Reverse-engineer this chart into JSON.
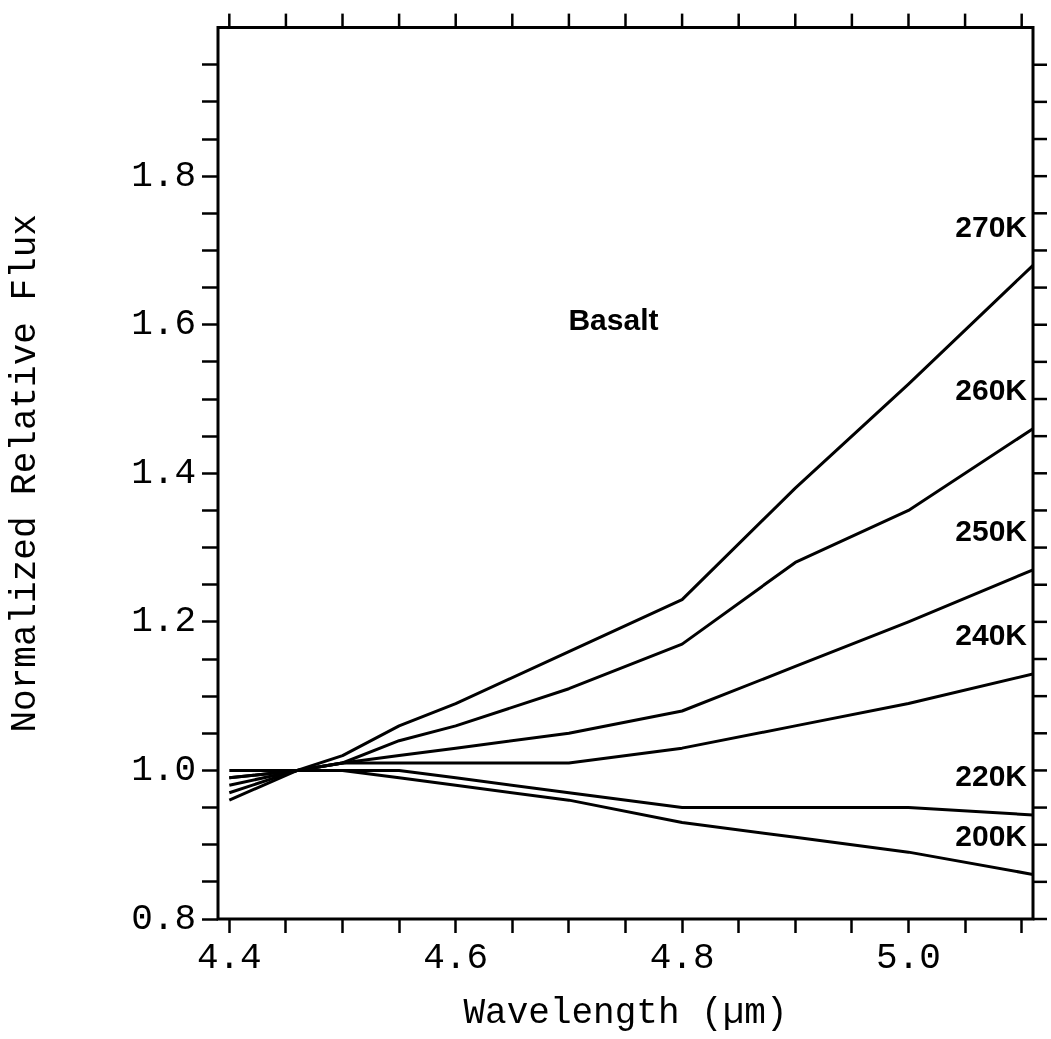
{
  "chart_data": {
    "type": "line",
    "xlabel": "Wavelength (µm)",
    "ylabel": "Normalized Relative Flux",
    "annotations": [
      "Basalt"
    ],
    "x": [
      4.4,
      4.46,
      4.5,
      4.55,
      4.6,
      4.7,
      4.8,
      4.9,
      5.0,
      5.11
    ],
    "series": [
      {
        "name": "270K",
        "color": "#000000",
        "values": [
          0.96,
          1.0,
          1.02,
          1.06,
          1.09,
          1.16,
          1.23,
          1.38,
          1.52,
          1.68
        ]
      },
      {
        "name": "260K",
        "color": "#000000",
        "values": [
          0.97,
          1.0,
          1.01,
          1.04,
          1.06,
          1.11,
          1.17,
          1.28,
          1.35,
          1.46
        ]
      },
      {
        "name": "250K",
        "color": "#000000",
        "values": [
          0.98,
          1.0,
          1.01,
          1.02,
          1.03,
          1.05,
          1.08,
          1.14,
          1.2,
          1.27
        ]
      },
      {
        "name": "240K",
        "color": "#000000",
        "values": [
          0.99,
          1.0,
          1.01,
          1.01,
          1.01,
          1.01,
          1.03,
          1.06,
          1.09,
          1.13
        ]
      },
      {
        "name": "220K",
        "color": "#000000",
        "values": [
          0.99,
          1.0,
          1.0,
          1.0,
          0.99,
          0.97,
          0.95,
          0.95,
          0.95,
          0.94
        ]
      },
      {
        "name": "200K",
        "color": "#000000",
        "values": [
          1.0,
          1.0,
          1.0,
          0.99,
          0.98,
          0.96,
          0.93,
          0.91,
          0.89,
          0.86
        ]
      }
    ],
    "xlim": [
      4.39,
      5.11
    ],
    "ylim": [
      0.8,
      2.0
    ],
    "xticks": [
      4.4,
      {
        "value": 4.45,
        "label": null
      },
      {
        "value": 4.5,
        "label": null
      },
      {
        "value": 4.55,
        "label": null
      },
      "4.6",
      {
        "value": 4.65,
        "label": null
      },
      {
        "value": 4.7,
        "label": null
      },
      {
        "value": 4.75,
        "label": null
      },
      "4.8",
      {
        "value": 4.85,
        "label": null
      },
      {
        "value": 4.9,
        "label": null
      },
      {
        "value": 4.95,
        "label": null
      },
      {
        "value": 5.0,
        "label": "5.0"
      },
      {
        "value": 5.05,
        "label": null
      },
      {
        "value": 5.1,
        "label": null
      }
    ],
    "yticks": [
      {
        "value": 0.8,
        "label": "0.8"
      },
      {
        "value": 0.85,
        "label": null
      },
      {
        "value": 0.9,
        "label": null
      },
      {
        "value": 0.95,
        "label": null
      },
      {
        "value": 1.0,
        "label": "1.0"
      },
      {
        "value": 1.05,
        "label": null
      },
      {
        "value": 1.1,
        "label": null
      },
      {
        "value": 1.15,
        "label": null
      },
      {
        "value": 1.2,
        "label": "1.2"
      },
      {
        "value": 1.25,
        "label": null
      },
      {
        "value": 1.3,
        "label": null
      },
      {
        "value": 1.35,
        "label": null
      },
      1.4,
      {
        "value": 1.45,
        "label": null
      },
      {
        "value": 1.5,
        "label": null
      },
      {
        "value": 1.55,
        "label": null
      },
      1.6,
      {
        "value": 1.65,
        "label": null
      },
      {
        "value": 1.7,
        "label": null
      },
      {
        "value": 1.75,
        "label": null
      },
      1.8,
      {
        "value": 1.85,
        "label": null
      },
      {
        "value": 1.9,
        "label": null
      },
      {
        "value": 1.95,
        "label": null
      }
    ],
    "grid": false,
    "legend": "right",
    "marker": "none",
    "line_style": "solid"
  }
}
